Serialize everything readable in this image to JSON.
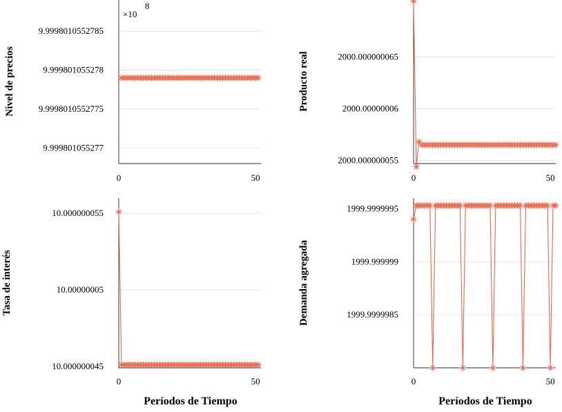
{
  "shared": {
    "xlabel": "Períodos de Tiempo",
    "series_color": "#e8674a",
    "marker": "asterisk"
  },
  "chart_data": [
    {
      "type": "line",
      "ylabel": "Nivel de precios",
      "xlabel": "",
      "exponent_note": "×10",
      "exponent_value": "8",
      "xlim": [
        0,
        52
      ],
      "ylim": [
        9.9998010552768,
        9.9998010552789
      ],
      "xticks": [
        0,
        50
      ],
      "xtick_labels": [
        "0",
        "50"
      ],
      "yticks": [
        9.999801055277,
        9.9998010552775,
        9.999801055278,
        9.9998010552785
      ],
      "ytick_labels": [
        "9.999801055277",
        "9.9998010552775",
        "9.999801055278",
        "9.9998010552785"
      ],
      "series": [
        {
          "name": "Nivel de precios",
          "x": [
            1,
            2,
            3,
            4,
            5,
            6,
            7,
            8,
            9,
            10,
            11,
            12,
            13,
            14,
            15,
            16,
            17,
            18,
            19,
            20,
            21,
            22,
            23,
            24,
            25,
            26,
            27,
            28,
            29,
            30,
            31,
            32,
            33,
            34,
            35,
            36,
            37,
            38,
            39,
            40,
            41,
            42,
            43,
            44,
            45,
            46,
            47,
            48,
            49,
            50,
            51
          ],
          "values": [
            9.9998010552779,
            9.9998010552779,
            9.9998010552779,
            9.9998010552779,
            9.9998010552779,
            9.9998010552779,
            9.9998010552779,
            9.9998010552779,
            9.9998010552779,
            9.9998010552779,
            9.9998010552779,
            9.9998010552779,
            9.9998010552779,
            9.9998010552779,
            9.9998010552779,
            9.9998010552779,
            9.9998010552779,
            9.9998010552779,
            9.9998010552779,
            9.9998010552779,
            9.9998010552779,
            9.9998010552779,
            9.9998010552779,
            9.9998010552779,
            9.9998010552779,
            9.9998010552779,
            9.9998010552779,
            9.9998010552779,
            9.9998010552779,
            9.9998010552779,
            9.9998010552779,
            9.9998010552779,
            9.9998010552779,
            9.9998010552779,
            9.9998010552779,
            9.9998010552779,
            9.9998010552779,
            9.9998010552779,
            9.9998010552779,
            9.9998010552779,
            9.9998010552779,
            9.9998010552779,
            9.9998010552779,
            9.9998010552779,
            9.9998010552779,
            9.9998010552779,
            9.9998010552779,
            9.9998010552779,
            9.9998010552779,
            9.9998010552779,
            9.9998010552779
          ]
        }
      ]
    },
    {
      "type": "line",
      "ylabel": "Producto real",
      "xlabel": "",
      "xlim": [
        0,
        52
      ],
      "ylim": [
        2000.0000000547,
        2000.0000000705
      ],
      "xticks": [
        0,
        50
      ],
      "xtick_labels": [
        "0",
        "50"
      ],
      "yticks": [
        2000.000000055,
        2000.00000006,
        2000.000000065
      ],
      "ytick_labels": [
        "2000.000000055",
        "2000.00000006",
        "2000.000000065"
      ],
      "series": [
        {
          "name": "Producto real",
          "x": [
            0,
            1,
            2,
            3,
            4,
            5,
            6,
            7,
            8,
            9,
            10,
            11,
            12,
            13,
            14,
            15,
            16,
            17,
            18,
            19,
            20,
            21,
            22,
            23,
            24,
            25,
            26,
            27,
            28,
            29,
            30,
            31,
            32,
            33,
            34,
            35,
            36,
            37,
            38,
            39,
            40,
            41,
            42,
            43,
            44,
            45,
            46,
            47,
            48,
            49,
            50,
            51,
            52
          ],
          "values": [
            2000.0000000704,
            2000.0000000544,
            2000.0000000568,
            2000.0000000565,
            2000.0000000565,
            2000.0000000565,
            2000.0000000565,
            2000.0000000565,
            2000.0000000565,
            2000.0000000565,
            2000.0000000565,
            2000.0000000565,
            2000.0000000565,
            2000.0000000565,
            2000.0000000565,
            2000.0000000565,
            2000.0000000565,
            2000.0000000565,
            2000.0000000565,
            2000.0000000565,
            2000.0000000565,
            2000.0000000565,
            2000.0000000565,
            2000.0000000565,
            2000.0000000565,
            2000.0000000565,
            2000.0000000565,
            2000.0000000565,
            2000.0000000565,
            2000.0000000565,
            2000.0000000565,
            2000.0000000565,
            2000.0000000565,
            2000.0000000565,
            2000.0000000565,
            2000.0000000565,
            2000.0000000565,
            2000.0000000565,
            2000.0000000565,
            2000.0000000565,
            2000.0000000565,
            2000.0000000565,
            2000.0000000565,
            2000.0000000565,
            2000.0000000565,
            2000.0000000565,
            2000.0000000565,
            2000.0000000565,
            2000.0000000565,
            2000.0000000565,
            2000.0000000565,
            2000.0000000565,
            2000.0000000565
          ]
        }
      ]
    },
    {
      "type": "line",
      "ylabel": "Tasa de interés",
      "xlabel": "Períodos de Tiempo",
      "xlim": [
        0,
        52
      ],
      "ylim": [
        10.0000000449,
        10.000000056
      ],
      "xticks": [
        0,
        50
      ],
      "xtick_labels": [
        "0",
        "50"
      ],
      "yticks": [
        10.000000045,
        10.00000005,
        10.000000055
      ],
      "ytick_labels": [
        "10.000000045",
        "10.00000005",
        "10.000000055"
      ],
      "series": [
        {
          "name": "Tasa de interés",
          "x": [
            0,
            1,
            2,
            3,
            4,
            5,
            6,
            7,
            8,
            9,
            10,
            11,
            12,
            13,
            14,
            15,
            16,
            17,
            18,
            19,
            20,
            21,
            22,
            23,
            24,
            25,
            26,
            27,
            28,
            29,
            30,
            31,
            32,
            33,
            34,
            35,
            36,
            37,
            38,
            39,
            40,
            41,
            42,
            43,
            44,
            45,
            46,
            47,
            48,
            49,
            50,
            51
          ],
          "values": [
            10.0000000551,
            10.0000000451,
            10.0000000451,
            10.0000000451,
            10.0000000451,
            10.0000000451,
            10.0000000451,
            10.0000000451,
            10.0000000451,
            10.0000000451,
            10.0000000451,
            10.0000000451,
            10.0000000451,
            10.0000000451,
            10.0000000451,
            10.0000000451,
            10.0000000451,
            10.0000000451,
            10.0000000451,
            10.0000000451,
            10.0000000451,
            10.0000000451,
            10.0000000451,
            10.0000000451,
            10.0000000451,
            10.0000000451,
            10.0000000451,
            10.0000000451,
            10.0000000451,
            10.0000000451,
            10.0000000451,
            10.0000000451,
            10.0000000451,
            10.0000000451,
            10.0000000451,
            10.0000000451,
            10.0000000451,
            10.0000000451,
            10.0000000451,
            10.0000000451,
            10.0000000451,
            10.0000000451,
            10.0000000451,
            10.0000000451,
            10.0000000451,
            10.0000000451,
            10.0000000451,
            10.0000000451,
            10.0000000451,
            10.0000000451,
            10.0000000451,
            10.0000000451
          ]
        }
      ]
    },
    {
      "type": "line",
      "ylabel": "Demanda agregada",
      "xlabel": "Períodos de Tiempo",
      "xlim": [
        0,
        52
      ],
      "ylim": [
        1999.999998,
        1999.9999996
      ],
      "xticks": [
        0,
        50
      ],
      "xtick_labels": [
        "0",
        "50"
      ],
      "yticks": [
        1999.9999985,
        1999.999999,
        1999.9999995
      ],
      "ytick_labels": [
        "1999.9999985",
        "1999.999999",
        "1999.9999995"
      ],
      "series": [
        {
          "name": "Demanda agregada",
          "x": [
            0,
            1,
            2,
            3,
            4,
            5,
            6,
            7,
            8,
            9,
            10,
            11,
            12,
            13,
            14,
            15,
            16,
            17,
            18,
            19,
            20,
            21,
            22,
            23,
            24,
            25,
            26,
            27,
            28,
            29,
            30,
            31,
            32,
            33,
            34,
            35,
            36,
            37,
            38,
            39,
            40,
            41,
            42,
            43,
            44,
            45,
            46,
            47,
            48,
            49,
            50,
            51,
            52
          ],
          "values": [
            1999.9999994,
            1999.99999953,
            1999.99999953,
            1999.99999953,
            1999.99999953,
            1999.99999953,
            1999.99999953,
            1999.999998,
            1999.99999953,
            1999.99999953,
            1999.99999953,
            1999.99999953,
            1999.99999953,
            1999.99999953,
            1999.99999953,
            1999.99999953,
            1999.99999953,
            1999.99999953,
            1999.999998,
            1999.99999953,
            1999.99999953,
            1999.99999953,
            1999.99999953,
            1999.99999953,
            1999.99999953,
            1999.99999953,
            1999.99999953,
            1999.99999953,
            1999.99999953,
            1999.999998,
            1999.99999953,
            1999.99999953,
            1999.99999953,
            1999.99999953,
            1999.99999953,
            1999.99999953,
            1999.99999953,
            1999.99999953,
            1999.99999953,
            1999.99999953,
            1999.999998,
            1999.99999953,
            1999.99999953,
            1999.99999953,
            1999.99999953,
            1999.99999953,
            1999.99999953,
            1999.99999953,
            1999.99999953,
            1999.99999953,
            1999.999998,
            1999.99999953,
            1999.99999953
          ]
        }
      ]
    }
  ]
}
